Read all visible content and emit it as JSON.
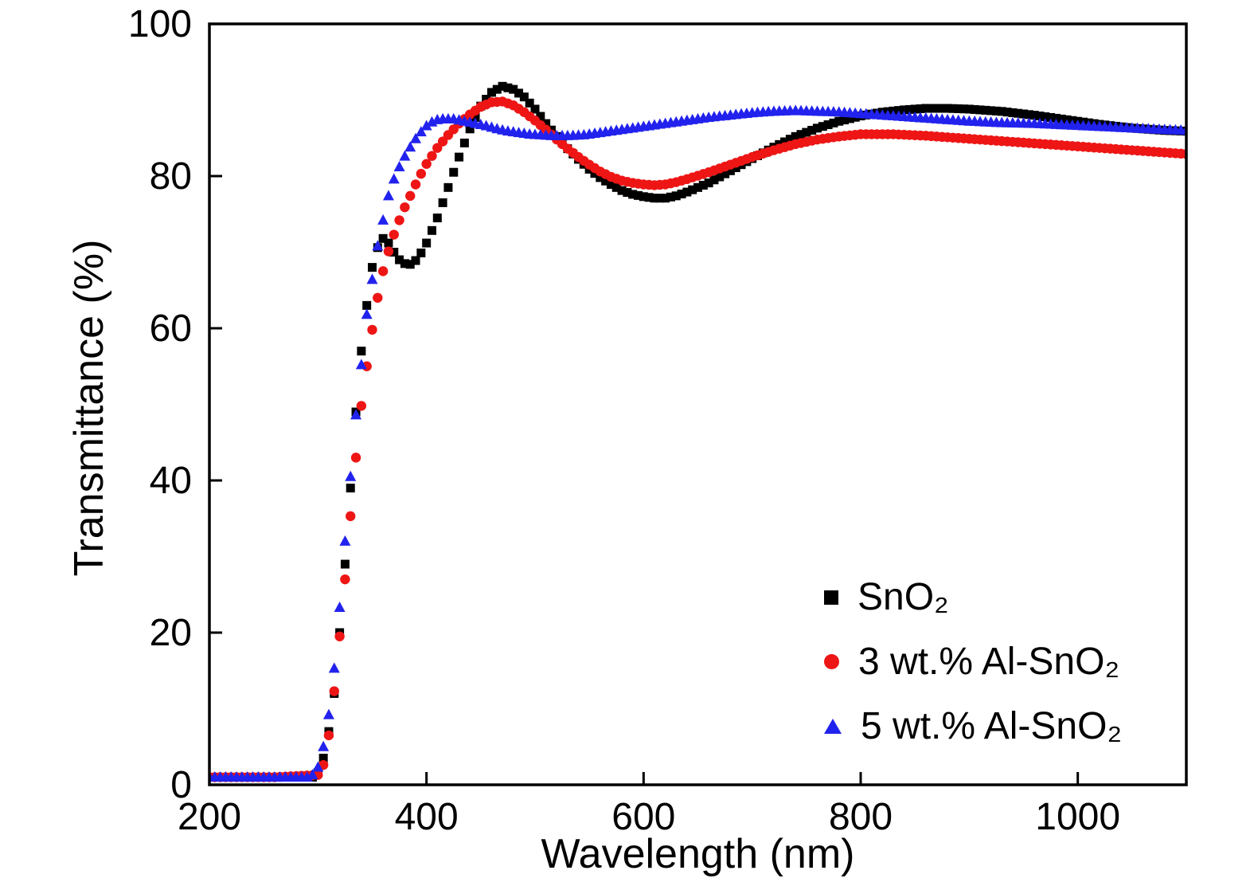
{
  "chart_data": {
    "type": "scatter",
    "title": "",
    "xlabel": "Wavelength (nm)",
    "ylabel": "Transmittance (%)",
    "xlim": [
      200,
      1100
    ],
    "ylim": [
      0,
      100
    ],
    "xticks": [
      200,
      400,
      600,
      800,
      1000
    ],
    "yticks": [
      0,
      20,
      40,
      60,
      80,
      100
    ],
    "grid": false,
    "legend_position": "lower right",
    "marker_step_nm": 5,
    "series": [
      {
        "name": "SnO₂",
        "marker": "square",
        "color": "#000000",
        "points": [
          [
            200,
            1
          ],
          [
            260,
            1
          ],
          [
            295,
            1
          ],
          [
            300,
            1.6
          ],
          [
            305,
            3.5
          ],
          [
            310,
            7
          ],
          [
            315,
            12
          ],
          [
            320,
            20
          ],
          [
            325,
            29
          ],
          [
            330,
            39
          ],
          [
            335,
            49
          ],
          [
            340,
            57
          ],
          [
            345,
            63
          ],
          [
            350,
            68
          ],
          [
            355,
            70.6
          ],
          [
            360,
            71.8
          ],
          [
            365,
            71.2
          ],
          [
            370,
            70
          ],
          [
            375,
            69
          ],
          [
            380,
            68.5
          ],
          [
            385,
            68.4
          ],
          [
            390,
            68.9
          ],
          [
            395,
            69.9
          ],
          [
            400,
            71.2
          ],
          [
            410,
            74.5
          ],
          [
            420,
            78.5
          ],
          [
            430,
            82.5
          ],
          [
            440,
            86.2
          ],
          [
            450,
            89.2
          ],
          [
            460,
            91
          ],
          [
            470,
            91.8
          ],
          [
            480,
            91.4
          ],
          [
            490,
            90.4
          ],
          [
            500,
            88.8
          ],
          [
            510,
            86.9
          ],
          [
            520,
            85.2
          ],
          [
            530,
            83.6
          ],
          [
            540,
            82.2
          ],
          [
            550,
            80.9
          ],
          [
            560,
            79.8
          ],
          [
            570,
            78.9
          ],
          [
            580,
            78.1
          ],
          [
            590,
            77.6
          ],
          [
            600,
            77.3
          ],
          [
            610,
            77.1
          ],
          [
            620,
            77.1
          ],
          [
            630,
            77.4
          ],
          [
            640,
            77.9
          ],
          [
            660,
            79.1
          ],
          [
            680,
            80.7
          ],
          [
            700,
            82.3
          ],
          [
            720,
            83.8
          ],
          [
            740,
            85.2
          ],
          [
            760,
            86.3
          ],
          [
            780,
            87.2
          ],
          [
            800,
            87.9
          ],
          [
            820,
            88.4
          ],
          [
            840,
            88.7
          ],
          [
            860,
            88.9
          ],
          [
            880,
            88.9
          ],
          [
            900,
            88.8
          ],
          [
            930,
            88.5
          ],
          [
            960,
            88
          ],
          [
            990,
            87.4
          ],
          [
            1020,
            86.8
          ],
          [
            1050,
            86.3
          ],
          [
            1080,
            86
          ],
          [
            1100,
            85.9
          ]
        ]
      },
      {
        "name": "3 wt.% Al-SnO₂",
        "marker": "circle",
        "color": "#ee1515",
        "points": [
          [
            200,
            1
          ],
          [
            260,
            1
          ],
          [
            300,
            1.3
          ],
          [
            305,
            2.6
          ],
          [
            310,
            6.5
          ],
          [
            315,
            12.3
          ],
          [
            320,
            19.5
          ],
          [
            325,
            27
          ],
          [
            330,
            35.3
          ],
          [
            335,
            43
          ],
          [
            340,
            49.8
          ],
          [
            345,
            55
          ],
          [
            350,
            59.8
          ],
          [
            355,
            64
          ],
          [
            360,
            67.5
          ],
          [
            365,
            70.1
          ],
          [
            370,
            72.3
          ],
          [
            375,
            74.2
          ],
          [
            380,
            75.9
          ],
          [
            385,
            77.4
          ],
          [
            390,
            78.9
          ],
          [
            395,
            80.3
          ],
          [
            400,
            81.6
          ],
          [
            410,
            83.7
          ],
          [
            420,
            85.4
          ],
          [
            430,
            86.9
          ],
          [
            440,
            88.1
          ],
          [
            450,
            89.1
          ],
          [
            460,
            89.7
          ],
          [
            470,
            89.8
          ],
          [
            480,
            89.3
          ],
          [
            490,
            88.4
          ],
          [
            500,
            87.3
          ],
          [
            510,
            86.1
          ],
          [
            520,
            84.8
          ],
          [
            530,
            83.6
          ],
          [
            540,
            82.5
          ],
          [
            550,
            81.5
          ],
          [
            560,
            80.6
          ],
          [
            570,
            79.9
          ],
          [
            580,
            79.4
          ],
          [
            590,
            79.1
          ],
          [
            600,
            78.9
          ],
          [
            610,
            78.8
          ],
          [
            620,
            78.9
          ],
          [
            630,
            79.2
          ],
          [
            640,
            79.6
          ],
          [
            660,
            80.5
          ],
          [
            680,
            81.5
          ],
          [
            700,
            82.5
          ],
          [
            720,
            83.4
          ],
          [
            740,
            84.2
          ],
          [
            760,
            84.8
          ],
          [
            780,
            85.2
          ],
          [
            800,
            85.5
          ],
          [
            830,
            85.5
          ],
          [
            860,
            85.3
          ],
          [
            890,
            85
          ],
          [
            920,
            84.7
          ],
          [
            950,
            84.4
          ],
          [
            980,
            84.1
          ],
          [
            1010,
            83.8
          ],
          [
            1040,
            83.5
          ],
          [
            1070,
            83.2
          ],
          [
            1100,
            82.9
          ]
        ]
      },
      {
        "name": "5 wt.% Al-SnO₂",
        "marker": "triangle",
        "color": "#2222ee",
        "points": [
          [
            200,
            1
          ],
          [
            260,
            1
          ],
          [
            290,
            1
          ],
          [
            295,
            1.3
          ],
          [
            300,
            2.3
          ],
          [
            305,
            5
          ],
          [
            310,
            9.2
          ],
          [
            315,
            15.3
          ],
          [
            320,
            23.3
          ],
          [
            325,
            32
          ],
          [
            330,
            40.5
          ],
          [
            335,
            48.6
          ],
          [
            340,
            55.2
          ],
          [
            345,
            61.8
          ],
          [
            350,
            66.4
          ],
          [
            355,
            70.8
          ],
          [
            360,
            74.2
          ],
          [
            365,
            77.4
          ],
          [
            370,
            79.6
          ],
          [
            375,
            81.2
          ],
          [
            380,
            82.6
          ],
          [
            385,
            83.8
          ],
          [
            390,
            84.9
          ],
          [
            395,
            85.8
          ],
          [
            400,
            86.6
          ],
          [
            405,
            87.1
          ],
          [
            410,
            87.4
          ],
          [
            415,
            87.5
          ],
          [
            425,
            87.5
          ],
          [
            435,
            87.2
          ],
          [
            445,
            86.9
          ],
          [
            455,
            86.6
          ],
          [
            465,
            86.2
          ],
          [
            475,
            85.9
          ],
          [
            485,
            85.7
          ],
          [
            495,
            85.5
          ],
          [
            505,
            85.4
          ],
          [
            515,
            85.3
          ],
          [
            530,
            85.3
          ],
          [
            545,
            85.4
          ],
          [
            560,
            85.7
          ],
          [
            580,
            86.1
          ],
          [
            600,
            86.5
          ],
          [
            620,
            86.9
          ],
          [
            640,
            87.3
          ],
          [
            660,
            87.7
          ],
          [
            680,
            88
          ],
          [
            700,
            88.3
          ],
          [
            720,
            88.5
          ],
          [
            740,
            88.6
          ],
          [
            760,
            88.5
          ],
          [
            780,
            88.4
          ],
          [
            800,
            88.2
          ],
          [
            820,
            88
          ],
          [
            840,
            87.8
          ],
          [
            860,
            87.6
          ],
          [
            880,
            87.4
          ],
          [
            900,
            87.2
          ],
          [
            930,
            87
          ],
          [
            960,
            86.9
          ],
          [
            990,
            86.7
          ],
          [
            1020,
            86.5
          ],
          [
            1050,
            86.3
          ],
          [
            1080,
            86.1
          ],
          [
            1100,
            86
          ]
        ]
      }
    ]
  }
}
